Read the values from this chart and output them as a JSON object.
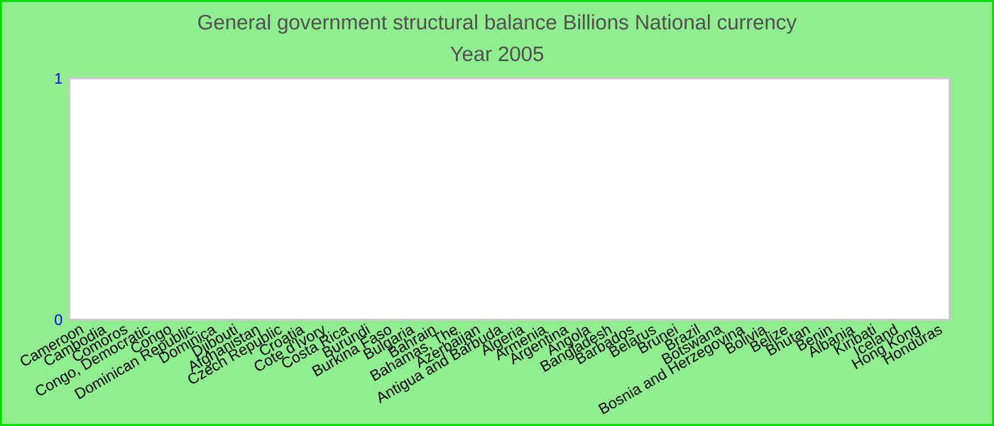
{
  "chart_data": {
    "type": "bar",
    "title": "General government structural balance Billions National currency",
    "subtitle": "Year 2005",
    "categories": [
      "Cameroon",
      "Cambodia",
      "Comoros",
      "Congo, Democratic",
      "Congo",
      "Dominican Republic",
      "Dominica",
      "Djibouti",
      "Afghanistan",
      "Czech Republic",
      "Croatia",
      "Cote d'Ivory",
      "Costa Rica",
      "Burundi",
      "Burkina Faso",
      "Bulgaria",
      "Bahrain",
      "Bahamas, The",
      "Azerbaijan",
      "Antigua and Barbuda",
      "Algeria",
      "Armenia",
      "Argentina",
      "Angola",
      "Bangladesh",
      "Barbados",
      "Belarus",
      "Brunei",
      "Brazil",
      "Botswana",
      "Bosnia and Herzegovina",
      "Bolivia",
      "Belize",
      "Bhutan",
      "Benin",
      "Albania",
      "Kiribati",
      "Iceland",
      "Hong Kong",
      "Honduras"
    ],
    "values": [
      null,
      null,
      null,
      null,
      null,
      null,
      null,
      null,
      null,
      null,
      null,
      null,
      null,
      null,
      null,
      null,
      null,
      null,
      null,
      null,
      null,
      null,
      null,
      null,
      null,
      null,
      null,
      null,
      null,
      null,
      null,
      null,
      null,
      null,
      null,
      null,
      null,
      null,
      null,
      null
    ],
    "ylim": [
      0,
      1
    ],
    "yticks": [
      0,
      1
    ]
  }
}
